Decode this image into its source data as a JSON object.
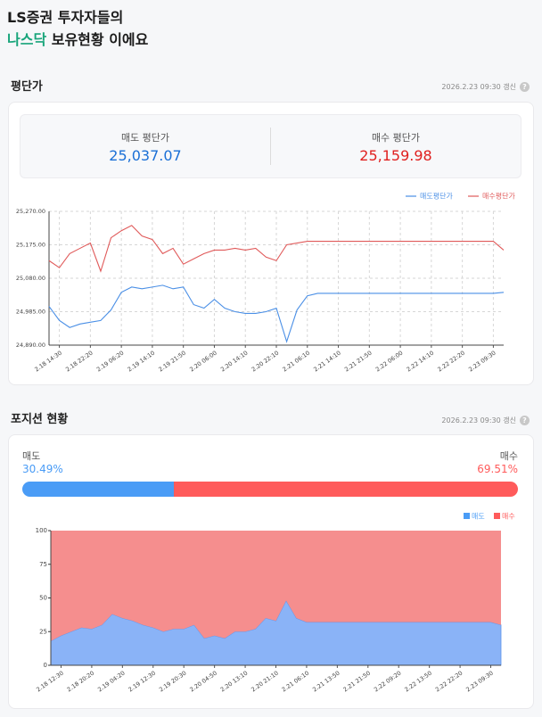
{
  "header": {
    "title_line1": "LS증권 투자자들의",
    "highlight": "나스닥",
    "title_rest": " 보유현황 이에요"
  },
  "help_icon": "?",
  "sections": [
    {
      "title": "평단가",
      "updated": "2026.2.23 09:30 갱신",
      "summary": [
        {
          "label": "매도 평단가",
          "value": "25,037.07"
        },
        {
          "label": "매수 평단가",
          "value": "25,159.98"
        }
      ]
    },
    {
      "title": "포지션 현황",
      "updated": "2026.2.23 09:30 갱신",
      "position": {
        "names": [
          "매도",
          "매수"
        ],
        "values": [
          30.49,
          69.51
        ],
        "value_labels": [
          "30.49%",
          "69.51%"
        ],
        "colors": [
          "#4a9cf6",
          "#ff5b5b"
        ]
      }
    }
  ],
  "chart_data": [
    {
      "type": "line",
      "categories": [
        null,
        "2.18 14:30",
        null,
        null,
        "2.18 22:20",
        null,
        null,
        "2.19 06:20",
        null,
        null,
        "2.19 14:10",
        null,
        null,
        "2.19 21:50",
        null,
        null,
        "2.20 06:00",
        null,
        null,
        "2.20 14:10",
        null,
        null,
        "2.20 22:10",
        null,
        null,
        "2.21 06:10",
        null,
        null,
        "2.21 14:10",
        null,
        null,
        "2.21 21:50",
        null,
        null,
        "2.22 06:00",
        null,
        null,
        "2.22 14:10",
        null,
        null,
        "2.22 22:20",
        null,
        null,
        "2.23 09:30",
        null
      ],
      "series": [
        {
          "name": "매도평단가",
          "color": "#4a8fe6",
          "values": [
            25000,
            24960,
            24940,
            24950,
            24955,
            24960,
            24990,
            25040,
            25055,
            25050,
            25055,
            25060,
            25050,
            25055,
            25005,
            24995,
            25020,
            24995,
            24985,
            24980,
            24980,
            24985,
            24995,
            24900,
            24990,
            25030,
            25037,
            25037,
            25037,
            25037,
            25037,
            25037,
            25037,
            25037,
            25037,
            25037,
            25037,
            25037,
            25037,
            25037,
            25037,
            25037,
            25037,
            25037,
            25040
          ]
        },
        {
          "name": "매수평단가",
          "color": "#e05a5a",
          "values": [
            25130,
            25110,
            25150,
            25165,
            25180,
            25100,
            25195,
            25215,
            25230,
            25200,
            25190,
            25150,
            25165,
            25120,
            25135,
            25150,
            25160,
            25160,
            25165,
            25160,
            25165,
            25140,
            25130,
            25175,
            25180,
            25185,
            25185,
            25185,
            25185,
            25185,
            25185,
            25185,
            25185,
            25185,
            25185,
            25185,
            25185,
            25185,
            25185,
            25185,
            25185,
            25185,
            25185,
            25185,
            25160
          ]
        }
      ],
      "ylim": [
        24890,
        25270
      ],
      "yticks": [
        {
          "value": 24890,
          "label": "24,890.00"
        },
        {
          "value": 24985,
          "label": "24,985.00"
        },
        {
          "value": 25080,
          "label": "25,080.00"
        },
        {
          "value": 25175,
          "label": "25,175.00"
        },
        {
          "value": 25270,
          "label": "25,270.00"
        }
      ],
      "grid": true,
      "legend": "top-right"
    },
    {
      "type": "stacked-area",
      "categories": [
        null,
        "2.18 12:30",
        null,
        null,
        "2.18 20:20",
        null,
        null,
        "2.19 04:20",
        null,
        null,
        "2.19 12:30",
        null,
        null,
        "2.19 20:30",
        null,
        null,
        "2.20 04:50",
        null,
        null,
        "2.20 13:10",
        null,
        null,
        "2.20 21:10",
        null,
        null,
        "2.21 06:10",
        null,
        null,
        "2.21 13:50",
        null,
        null,
        "2.21 21:50",
        null,
        null,
        "2.22 09:20",
        null,
        null,
        "2.22 13:50",
        null,
        null,
        "2.22 22:20",
        null,
        null,
        "2.23 09:30",
        null
      ],
      "series": [
        {
          "name": "매도",
          "color": "#8ab3f7",
          "values": [
            18,
            22,
            25,
            28,
            27,
            30,
            38,
            35,
            33,
            30,
            28,
            25,
            27,
            27,
            30,
            20,
            22,
            20,
            25,
            25,
            27,
            35,
            33,
            48,
            35,
            32,
            32,
            32,
            32,
            32,
            32,
            32,
            32,
            32,
            32,
            32,
            32,
            32,
            32,
            32,
            32,
            32,
            32,
            32,
            30
          ]
        },
        {
          "name": "매수",
          "color": "#f58e8e",
          "values": [
            82,
            78,
            75,
            72,
            73,
            70,
            62,
            65,
            67,
            70,
            72,
            75,
            73,
            73,
            70,
            80,
            78,
            80,
            75,
            75,
            73,
            65,
            67,
            52,
            65,
            68,
            68,
            68,
            68,
            68,
            68,
            68,
            68,
            68,
            68,
            68,
            68,
            68,
            68,
            68,
            68,
            68,
            68,
            68,
            70
          ]
        }
      ],
      "ylim": [
        0,
        100
      ],
      "yticks": [
        0,
        25,
        50,
        75,
        100
      ],
      "grid": false,
      "legend": "top-right"
    }
  ]
}
